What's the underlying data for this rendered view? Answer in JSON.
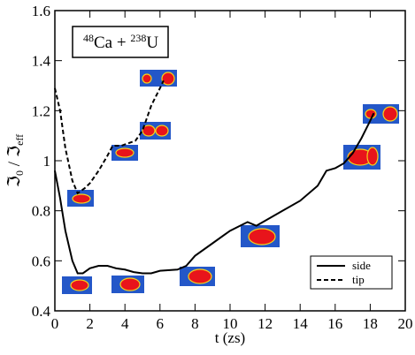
{
  "chart_data": {
    "type": "line",
    "xlabel": "t (zs)",
    "ylabel": [
      "ℑ",
      "0",
      " / ℑ",
      "eff"
    ],
    "reaction": [
      "48",
      "Ca + ",
      "238",
      "U"
    ],
    "xlim": [
      0,
      20
    ],
    "xticks": [
      0,
      2,
      4,
      6,
      8,
      10,
      12,
      14,
      16,
      18,
      20
    ],
    "ylim": [
      0.4,
      1.6
    ],
    "yticks": [
      0.4,
      0.6,
      0.8,
      1,
      1.2,
      1.4,
      1.6
    ],
    "legend": "lower-right",
    "series": [
      {
        "name": "side",
        "color": "#000000",
        "linestyle": "solid",
        "x": [
          0,
          0.3,
          0.6,
          1,
          1.3,
          1.6,
          2,
          2.5,
          3,
          3.5,
          4,
          4.5,
          5,
          5.5,
          6,
          7,
          7.5,
          8,
          9,
          10,
          11,
          11.5,
          12,
          13,
          14,
          15,
          15.5,
          16,
          16.5,
          17,
          17.5,
          18,
          18.2
        ],
        "values": [
          0.96,
          0.85,
          0.72,
          0.6,
          0.55,
          0.55,
          0.57,
          0.58,
          0.58,
          0.57,
          0.565,
          0.555,
          0.55,
          0.55,
          0.56,
          0.565,
          0.58,
          0.62,
          0.67,
          0.72,
          0.755,
          0.74,
          0.76,
          0.8,
          0.84,
          0.9,
          0.96,
          0.97,
          0.99,
          1.03,
          1.09,
          1.16,
          1.19
        ]
      },
      {
        "name": "tip",
        "color": "#000000",
        "linestyle": "dashed",
        "x": [
          0,
          0.3,
          0.6,
          1,
          1.3,
          1.7,
          2,
          2.5,
          3,
          3.3,
          3.8,
          4.2,
          4.6,
          5,
          5.5,
          6,
          6.2
        ],
        "values": [
          1.29,
          1.2,
          1.05,
          0.92,
          0.87,
          0.89,
          0.91,
          0.96,
          1.02,
          1.06,
          1.06,
          1.07,
          1.08,
          1.12,
          1.22,
          1.29,
          1.32
        ]
      }
    ]
  }
}
